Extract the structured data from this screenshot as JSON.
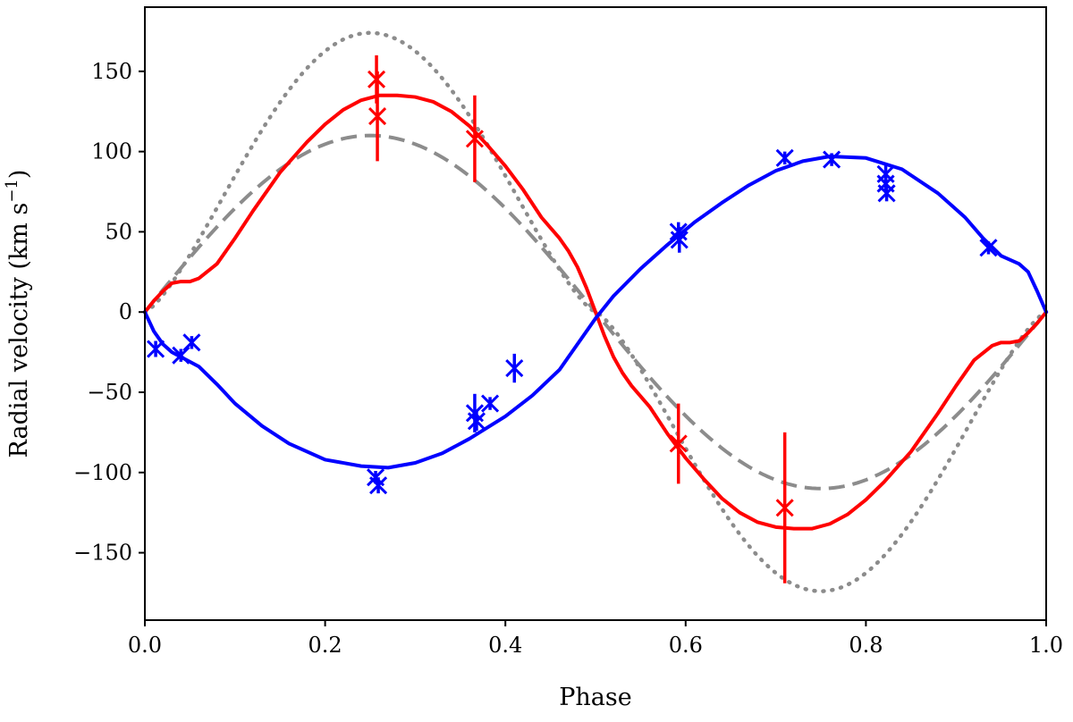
{
  "chart_data": {
    "type": "scatter",
    "xlabel": "Phase",
    "ylabel_main": "Radial velocity (km s",
    "ylabel_sup": "−1",
    "ylabel_close": ")",
    "xlim": [
      0.0,
      1.0
    ],
    "ylim": [
      -192,
      190
    ],
    "xticks": [
      0.0,
      0.2,
      0.4,
      0.6,
      0.8,
      1.0
    ],
    "xtick_labels": [
      "0.0",
      "0.2",
      "0.4",
      "0.6",
      "0.8",
      "1.0"
    ],
    "yticks": [
      -150,
      -100,
      -50,
      0,
      50,
      100,
      150
    ],
    "ytick_labels": [
      "−150",
      "−100",
      "−50",
      "0",
      "50",
      "100",
      "150"
    ],
    "grid": false,
    "series": [
      {
        "color": "#ff0000",
        "style": "solid",
        "curve": [
          [
            0.0,
            0
          ],
          [
            0.01,
            7
          ],
          [
            0.02,
            13
          ],
          [
            0.03,
            18
          ],
          [
            0.04,
            19
          ],
          [
            0.05,
            19
          ],
          [
            0.06,
            21
          ],
          [
            0.08,
            30
          ],
          [
            0.1,
            46
          ],
          [
            0.12,
            63
          ],
          [
            0.15,
            87
          ],
          [
            0.18,
            106
          ],
          [
            0.2,
            117
          ],
          [
            0.22,
            126
          ],
          [
            0.24,
            132
          ],
          [
            0.26,
            135
          ],
          [
            0.28,
            135
          ],
          [
            0.3,
            134
          ],
          [
            0.32,
            131
          ],
          [
            0.34,
            125
          ],
          [
            0.36,
            116
          ],
          [
            0.38,
            104
          ],
          [
            0.4,
            91
          ],
          [
            0.42,
            76
          ],
          [
            0.44,
            59
          ],
          [
            0.46,
            46
          ],
          [
            0.47,
            38
          ],
          [
            0.48,
            28
          ],
          [
            0.49,
            15
          ],
          [
            0.5,
            0
          ],
          [
            0.51,
            -15
          ],
          [
            0.52,
            -28
          ],
          [
            0.53,
            -38
          ],
          [
            0.54,
            -46
          ],
          [
            0.56,
            -59
          ],
          [
            0.58,
            -76
          ],
          [
            0.6,
            -91
          ],
          [
            0.62,
            -104
          ],
          [
            0.64,
            -116
          ],
          [
            0.66,
            -125
          ],
          [
            0.68,
            -131
          ],
          [
            0.7,
            -134
          ],
          [
            0.72,
            -135
          ],
          [
            0.74,
            -135
          ],
          [
            0.76,
            -132
          ],
          [
            0.78,
            -126
          ],
          [
            0.8,
            -117
          ],
          [
            0.82,
            -106
          ],
          [
            0.85,
            -87
          ],
          [
            0.88,
            -63
          ],
          [
            0.9,
            -46
          ],
          [
            0.92,
            -30
          ],
          [
            0.94,
            -21
          ],
          [
            0.95,
            -19
          ],
          [
            0.96,
            -19
          ],
          [
            0.97,
            -18
          ],
          [
            0.98,
            -13
          ],
          [
            0.99,
            -7
          ],
          [
            1.0,
            0
          ]
        ],
        "points": [
          {
            "x": 0.257,
            "y": 145,
            "err": 15
          },
          {
            "x": 0.258,
            "y": 122,
            "err": 28
          },
          {
            "x": 0.366,
            "y": 108,
            "err": 27
          },
          {
            "x": 0.592,
            "y": -82,
            "err": 25
          },
          {
            "x": 0.71,
            "y": -122,
            "err": 47
          }
        ]
      },
      {
        "color": "#0000ff",
        "style": "solid",
        "curve": [
          [
            0.0,
            0
          ],
          [
            0.01,
            -12
          ],
          [
            0.02,
            -20
          ],
          [
            0.03,
            -25
          ],
          [
            0.04,
            -28
          ],
          [
            0.05,
            -31
          ],
          [
            0.06,
            -34
          ],
          [
            0.08,
            -45
          ],
          [
            0.1,
            -57
          ],
          [
            0.13,
            -71
          ],
          [
            0.16,
            -82
          ],
          [
            0.2,
            -92
          ],
          [
            0.24,
            -96
          ],
          [
            0.27,
            -97
          ],
          [
            0.3,
            -94
          ],
          [
            0.33,
            -88
          ],
          [
            0.36,
            -79
          ],
          [
            0.4,
            -65
          ],
          [
            0.43,
            -52
          ],
          [
            0.46,
            -36
          ],
          [
            0.48,
            -20
          ],
          [
            0.5,
            -4
          ],
          [
            0.52,
            10
          ],
          [
            0.55,
            27
          ],
          [
            0.58,
            42
          ],
          [
            0.61,
            56
          ],
          [
            0.64,
            68
          ],
          [
            0.67,
            79
          ],
          [
            0.7,
            88
          ],
          [
            0.73,
            94
          ],
          [
            0.76,
            97
          ],
          [
            0.8,
            96
          ],
          [
            0.84,
            89
          ],
          [
            0.88,
            74
          ],
          [
            0.91,
            59
          ],
          [
            0.93,
            46
          ],
          [
            0.95,
            35
          ],
          [
            0.97,
            30
          ],
          [
            0.98,
            25
          ],
          [
            0.99,
            13
          ],
          [
            1.0,
            0
          ]
        ],
        "points": [
          {
            "x": 0.012,
            "y": -23,
            "err": 5
          },
          {
            "x": 0.04,
            "y": -27,
            "err": 4
          },
          {
            "x": 0.052,
            "y": -19,
            "err": 4
          },
          {
            "x": 0.256,
            "y": -103,
            "err": 4
          },
          {
            "x": 0.259,
            "y": -108,
            "err": 5
          },
          {
            "x": 0.366,
            "y": -63,
            "err": 12
          },
          {
            "x": 0.368,
            "y": -68,
            "err": 6
          },
          {
            "x": 0.383,
            "y": -57,
            "err": 4
          },
          {
            "x": 0.41,
            "y": -35,
            "err": 9
          },
          {
            "x": 0.592,
            "y": 50,
            "err": 6
          },
          {
            "x": 0.593,
            "y": 45,
            "err": 8
          },
          {
            "x": 0.71,
            "y": 96,
            "err": 4
          },
          {
            "x": 0.762,
            "y": 95,
            "err": 4
          },
          {
            "x": 0.822,
            "y": 86,
            "err": 6
          },
          {
            "x": 0.822,
            "y": 80,
            "err": 5
          },
          {
            "x": 0.823,
            "y": 74,
            "err": 5
          },
          {
            "x": 0.936,
            "y": 40,
            "err": 4
          }
        ]
      },
      {
        "color": "#8c8c8c",
        "style": "dashed",
        "amplitude": 110,
        "shape": "-sin",
        "points": []
      },
      {
        "color": "#8c8c8c",
        "style": "dotted",
        "amplitude": 174,
        "shape": "sin3",
        "points": []
      }
    ]
  }
}
